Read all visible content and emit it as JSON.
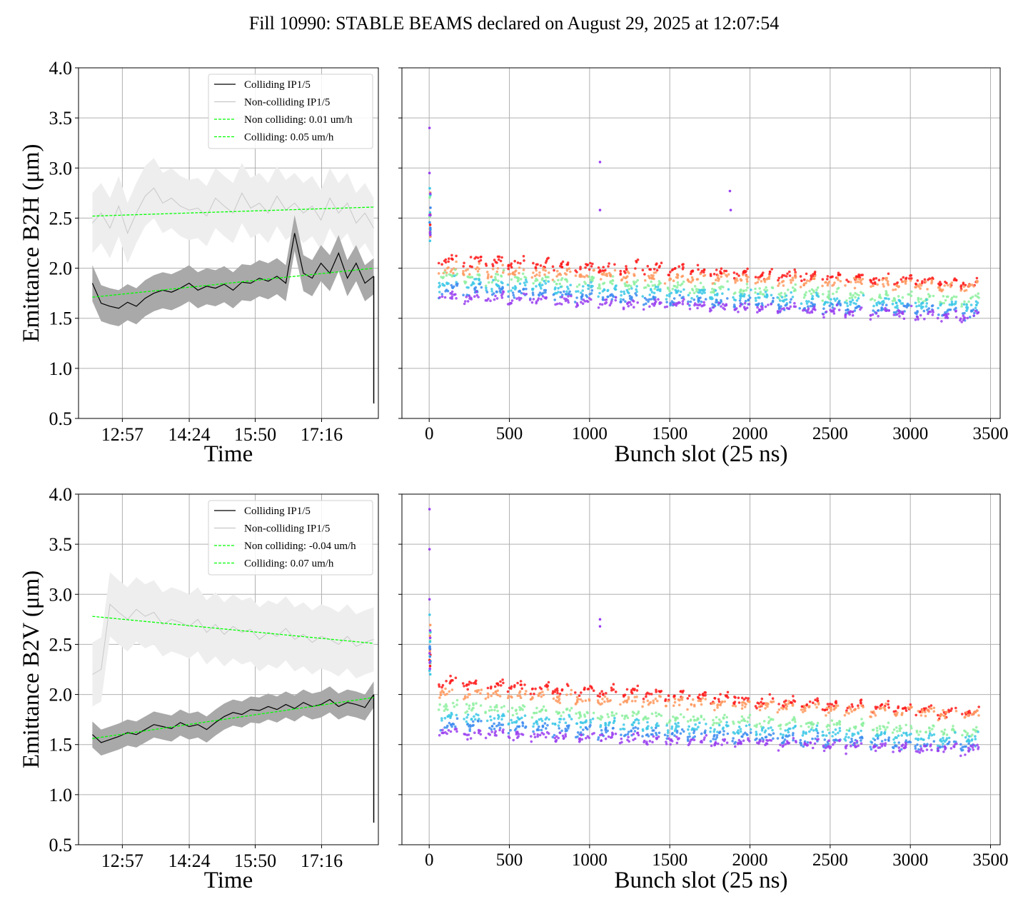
{
  "suptitle": "Fill 10990: STABLE BEAMS declared on August 29, 2025 at 12:07:54",
  "colors": {
    "colliding": "#000000",
    "noncolliding": "#c8c8c8",
    "fit": "#00ff00",
    "band_colliding": "#a9a9a9",
    "band_noncolliding": "#eeeeee",
    "grid": "#b0b0b0"
  },
  "chart_data": [
    {
      "type": "line",
      "panel": "top-left",
      "xlabel": "Time",
      "ylabel": "Emittance B2H (μm)",
      "ylim": [
        0.5,
        4.0
      ],
      "yticks": [
        "0.5",
        "1.0",
        "1.5",
        "2.0",
        "2.5",
        "3.0",
        "3.5",
        "4.0"
      ],
      "xlim_hours": [
        12.0,
        18.5
      ],
      "xticks": [
        {
          "t": 12.95,
          "label": "12:57"
        },
        {
          "t": 14.4,
          "label": "14:24"
        },
        {
          "t": 15.83,
          "label": "15:50"
        },
        {
          "t": 17.27,
          "label": "17:16"
        }
      ],
      "legend": [
        "Colliding IP1/5",
        "Non-colliding IP1/5",
        "Non colliding: 0.01 um/h",
        "Colliding: 0.05 um/h"
      ],
      "legend_loc": "upper right",
      "grid": true,
      "series": [
        {
          "name": "Colliding IP1/5",
          "start": 12.3,
          "end": 18.4,
          "values": [
            1.85,
            1.65,
            1.62,
            1.6,
            1.66,
            1.62,
            1.7,
            1.75,
            1.78,
            1.76,
            1.8,
            1.85,
            1.78,
            1.82,
            1.8,
            1.84,
            1.78,
            1.86,
            1.85,
            1.9,
            1.87,
            1.92,
            1.85,
            2.35,
            1.95,
            1.9,
            2.05,
            1.95,
            2.15,
            1.9,
            2.05,
            1.85,
            1.92
          ],
          "band": 0.18,
          "drop_to": 0.65
        },
        {
          "name": "Non-colliding IP1/5",
          "start": 12.3,
          "end": 18.4,
          "values": [
            2.45,
            2.55,
            2.4,
            2.62,
            2.35,
            2.55,
            2.72,
            2.8,
            2.65,
            2.7,
            2.62,
            2.58,
            2.6,
            2.52,
            2.7,
            2.62,
            2.55,
            2.75,
            2.6,
            2.65,
            2.55,
            2.72,
            2.58,
            2.65,
            2.55,
            2.62,
            2.48,
            2.7,
            2.55,
            2.65,
            2.45,
            2.55,
            2.4
          ],
          "band": 0.3
        },
        {
          "name": "Non colliding: 0.01 um/h",
          "start": 12.3,
          "end": 18.4,
          "y0": 2.52,
          "y1": 2.61
        },
        {
          "name": "Colliding: 0.05 um/h",
          "start": 12.3,
          "end": 18.4,
          "y0": 1.71,
          "y1": 2.0
        }
      ]
    },
    {
      "type": "scatter",
      "panel": "top-right",
      "xlabel": "Bunch slot (25 ns)",
      "ylabel": "",
      "xlim": [
        -170,
        3560
      ],
      "ylim": [
        0.5,
        4.0
      ],
      "xticks": [
        "0",
        "500",
        "1000",
        "1500",
        "2000",
        "2500",
        "3000",
        "3500"
      ],
      "grid": true,
      "trains_start": [
        60,
        210,
        350,
        490,
        630,
        770,
        910,
        1050,
        1190,
        1330,
        1470,
        1610,
        1750,
        1890,
        2030,
        2170,
        2310,
        2450,
        2590,
        2750,
        2890,
        3030,
        3170,
        3310
      ],
      "train_length": 118,
      "levels": [
        {
          "name": "red",
          "color": "#ff1a1a",
          "start": 2.08,
          "end": 1.85
        },
        {
          "name": "orange",
          "color": "#ff9a60",
          "start": 1.98,
          "end": 1.82
        },
        {
          "name": "green",
          "color": "#8ef0a0",
          "start": 1.92,
          "end": 1.68
        },
        {
          "name": "cyan",
          "color": "#3cc8e6",
          "start": 1.85,
          "end": 1.62
        },
        {
          "name": "blue",
          "color": "#3c8cf0",
          "start": 1.78,
          "end": 1.55
        },
        {
          "name": "violet",
          "color": "#9a40f0",
          "start": 1.72,
          "end": 1.52
        }
      ],
      "outliers": [
        {
          "x": 1065,
          "y": 3.06
        },
        {
          "x": 1065,
          "y": 2.58
        },
        {
          "x": 1875,
          "y": 2.77
        },
        {
          "x": 1880,
          "y": 2.58
        },
        {
          "x": 2,
          "y": 3.4
        },
        {
          "x": 2,
          "y": 2.95
        }
      ]
    },
    {
      "type": "line",
      "panel": "bottom-left",
      "xlabel": "Time",
      "ylabel": "Emittance B2V (μm)",
      "ylim": [
        0.5,
        4.0
      ],
      "yticks": [
        "0.5",
        "1.0",
        "1.5",
        "2.0",
        "2.5",
        "3.0",
        "3.5",
        "4.0"
      ],
      "xlim_hours": [
        12.0,
        18.5
      ],
      "xticks": [
        {
          "t": 12.95,
          "label": "12:57"
        },
        {
          "t": 14.4,
          "label": "14:24"
        },
        {
          "t": 15.83,
          "label": "15:50"
        },
        {
          "t": 17.27,
          "label": "17:16"
        }
      ],
      "legend": [
        "Colliding IP1/5",
        "Non-colliding IP1/5",
        "Non colliding: -0.04 um/h",
        "Colliding: 0.07 um/h"
      ],
      "legend_loc": "upper right",
      "grid": true,
      "series": [
        {
          "name": "Colliding IP1/5",
          "start": 12.3,
          "end": 18.4,
          "values": [
            1.6,
            1.52,
            1.55,
            1.58,
            1.62,
            1.6,
            1.65,
            1.7,
            1.68,
            1.66,
            1.72,
            1.68,
            1.7,
            1.65,
            1.72,
            1.78,
            1.82,
            1.8,
            1.85,
            1.84,
            1.88,
            1.85,
            1.9,
            1.86,
            1.92,
            1.88,
            1.9,
            1.95,
            1.88,
            1.92,
            1.9,
            1.87,
            2.0
          ],
          "band": 0.13,
          "drop_to": 0.72
        },
        {
          "name": "Non-colliding IP1/5",
          "start": 12.3,
          "end": 18.4,
          "values": [
            2.2,
            2.25,
            2.9,
            2.82,
            2.75,
            2.85,
            2.78,
            2.82,
            2.7,
            2.75,
            2.72,
            2.68,
            2.75,
            2.62,
            2.7,
            2.6,
            2.68,
            2.62,
            2.65,
            2.55,
            2.62,
            2.58,
            2.66,
            2.55,
            2.6,
            2.52,
            2.58,
            2.55,
            2.5,
            2.58,
            2.48,
            2.52,
            2.55
          ],
          "band": 0.32
        },
        {
          "name": "Non colliding: -0.04 um/h",
          "start": 12.3,
          "end": 18.4,
          "y0": 2.78,
          "y1": 2.51
        },
        {
          "name": "Colliding: 0.07 um/h",
          "start": 12.3,
          "end": 18.4,
          "y0": 1.56,
          "y1": 1.97
        }
      ]
    },
    {
      "type": "scatter",
      "panel": "bottom-right",
      "xlabel": "Bunch slot (25 ns)",
      "ylabel": "",
      "xlim": [
        -170,
        3560
      ],
      "ylim": [
        0.5,
        4.0
      ],
      "xticks": [
        "0",
        "500",
        "1000",
        "1500",
        "2000",
        "2500",
        "3000",
        "3500"
      ],
      "grid": true,
      "trains_start": [
        60,
        210,
        350,
        490,
        630,
        770,
        910,
        1050,
        1190,
        1330,
        1470,
        1610,
        1750,
        1890,
        2030,
        2170,
        2310,
        2450,
        2590,
        2750,
        2890,
        3030,
        3170,
        3310
      ],
      "train_length": 118,
      "levels": [
        {
          "name": "red",
          "color": "#ff1a1a",
          "start": 2.12,
          "end": 1.82
        },
        {
          "name": "orange",
          "color": "#ff9a60",
          "start": 2.02,
          "end": 1.8
        },
        {
          "name": "green",
          "color": "#8ef0a0",
          "start": 1.88,
          "end": 1.62
        },
        {
          "name": "cyan",
          "color": "#3cc8e6",
          "start": 1.78,
          "end": 1.55
        },
        {
          "name": "blue",
          "color": "#3c8cf0",
          "start": 1.7,
          "end": 1.48
        },
        {
          "name": "violet",
          "color": "#9a40f0",
          "start": 1.62,
          "end": 1.45
        }
      ],
      "outliers": [
        {
          "x": 1065,
          "y": 2.75
        },
        {
          "x": 1065,
          "y": 2.68
        },
        {
          "x": 2,
          "y": 3.85
        },
        {
          "x": 2,
          "y": 3.45
        },
        {
          "x": 2,
          "y": 2.95
        }
      ]
    }
  ]
}
